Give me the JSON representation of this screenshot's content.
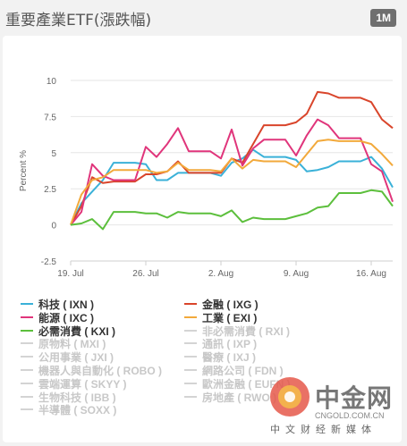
{
  "header": {
    "title": "重要產業ETF(漲跌幅)",
    "range_label": "1M"
  },
  "chart_data": {
    "type": "line",
    "ylabel": "Percent %",
    "ylim": [
      -2.5,
      10
    ],
    "yticks": [
      "10",
      "7.5",
      "5",
      "2.5",
      "0",
      "-2.5"
    ],
    "ytick_values": [
      10,
      7.5,
      5,
      2.5,
      0,
      -2.5
    ],
    "xticks": [
      {
        "label": "19. Jul",
        "day": 0
      },
      {
        "label": "26. Jul",
        "day": 7
      },
      {
        "label": "2. Aug",
        "day": 14
      },
      {
        "label": "9. Aug",
        "day": 21
      },
      {
        "label": "16. Aug",
        "day": 28
      }
    ],
    "grid": true,
    "x": [
      0,
      1,
      2,
      3,
      4,
      5,
      6,
      7,
      8,
      9,
      10,
      11,
      12,
      13,
      14,
      15,
      16,
      17,
      18,
      19,
      20,
      21,
      22,
      23,
      24,
      25,
      26,
      27,
      28,
      29,
      30
    ],
    "series": [
      {
        "name": "科技 ( IXN )",
        "color": "#3ab1d8",
        "values": [
          0,
          1.5,
          2.3,
          3.1,
          4.3,
          4.3,
          4.3,
          4.2,
          3.1,
          3.1,
          3.6,
          3.6,
          3.6,
          3.6,
          3.4,
          4.3,
          4.6,
          5.2,
          4.7,
          4.7,
          4.7,
          4.5,
          3.7,
          3.8,
          4.0,
          4.4,
          4.4,
          4.4,
          4.7,
          3.9,
          2.6
        ]
      },
      {
        "name": "金融 ( IXG )",
        "color": "#d9452b",
        "values": [
          0,
          1.3,
          3.3,
          2.9,
          3.0,
          3.0,
          3.0,
          3.5,
          3.5,
          3.7,
          4.4,
          3.6,
          3.6,
          3.6,
          3.6,
          4.6,
          4.3,
          5.6,
          6.9,
          6.9,
          6.9,
          7.1,
          7.7,
          9.2,
          9.1,
          8.8,
          8.8,
          8.8,
          8.5,
          7.3,
          6.7
        ]
      },
      {
        "name": "能源 ( IXC )",
        "color": "#e0357b",
        "values": [
          0,
          0.9,
          4.2,
          3.4,
          3.1,
          3.1,
          3.1,
          5.4,
          4.7,
          5.6,
          6.7,
          5.1,
          5.1,
          5.1,
          4.6,
          6.6,
          4.1,
          5.3,
          5.9,
          5.9,
          5.9,
          4.8,
          6.2,
          7.3,
          6.9,
          6.0,
          6.0,
          6.0,
          4.2,
          3.7,
          1.6
        ]
      },
      {
        "name": "工業 ( EXI )",
        "color": "#f2a93b",
        "values": [
          0,
          2.1,
          3.1,
          3.3,
          3.8,
          3.8,
          3.8,
          3.8,
          3.6,
          3.7,
          4.3,
          3.8,
          3.8,
          3.8,
          3.7,
          4.6,
          3.9,
          4.5,
          4.4,
          4.4,
          4.4,
          4.0,
          4.9,
          5.8,
          5.9,
          5.8,
          5.8,
          5.8,
          5.6,
          4.9,
          4.1
        ]
      },
      {
        "name": "必需消費 ( KXI )",
        "color": "#5cbf3c",
        "values": [
          0,
          0.1,
          0.4,
          -0.3,
          0.9,
          0.9,
          0.9,
          0.8,
          0.8,
          0.5,
          0.9,
          0.8,
          0.8,
          0.8,
          0.6,
          1.0,
          0.2,
          0.5,
          0.4,
          0.4,
          0.4,
          0.6,
          0.8,
          1.2,
          1.3,
          2.2,
          2.2,
          2.2,
          2.4,
          2.3,
          1.3
        ]
      }
    ]
  },
  "legend": [
    {
      "label": "科技 ( IXN )",
      "color": "#3ab1d8",
      "active": true
    },
    {
      "label": "金融 ( IXG )",
      "color": "#d9452b",
      "active": true
    },
    {
      "label": "能源 ( IXC )",
      "color": "#e0357b",
      "active": true
    },
    {
      "label": "工業 ( EXI )",
      "color": "#f2a93b",
      "active": true
    },
    {
      "label": "必需消費 ( KXI )",
      "color": "#5cbf3c",
      "active": true
    },
    {
      "label": "非必需消費 ( RXI )",
      "color": "#d4d4d4",
      "active": false
    },
    {
      "label": "原物料 ( MXI )",
      "color": "#d4d4d4",
      "active": false
    },
    {
      "label": "通訊 ( IXP )",
      "color": "#d4d4d4",
      "active": false
    },
    {
      "label": "公用事業 ( JXI )",
      "color": "#d4d4d4",
      "active": false
    },
    {
      "label": "醫療 ( IXJ )",
      "color": "#d4d4d4",
      "active": false
    },
    {
      "label": "機器人與自動化 ( ROBO )",
      "color": "#d4d4d4",
      "active": false
    },
    {
      "label": "網路公司 ( FDN )",
      "color": "#d4d4d4",
      "active": false
    },
    {
      "label": "雲端運算 ( SKYY )",
      "color": "#d4d4d4",
      "active": false
    },
    {
      "label": "歐洲金融 ( EUFN )",
      "color": "#d4d4d4",
      "active": false
    },
    {
      "label": "生物科技 ( IBB )",
      "color": "#d4d4d4",
      "active": false
    },
    {
      "label": "房地產 ( RWO )",
      "color": "#d4d4d4",
      "active": false
    },
    {
      "label": "半導體 ( SOXX )",
      "color": "#d4d4d4",
      "active": false
    }
  ],
  "watermark": {
    "name": "中金网",
    "url": "CNGOLD.COM.CN",
    "sub": "中文财经新媒体"
  }
}
